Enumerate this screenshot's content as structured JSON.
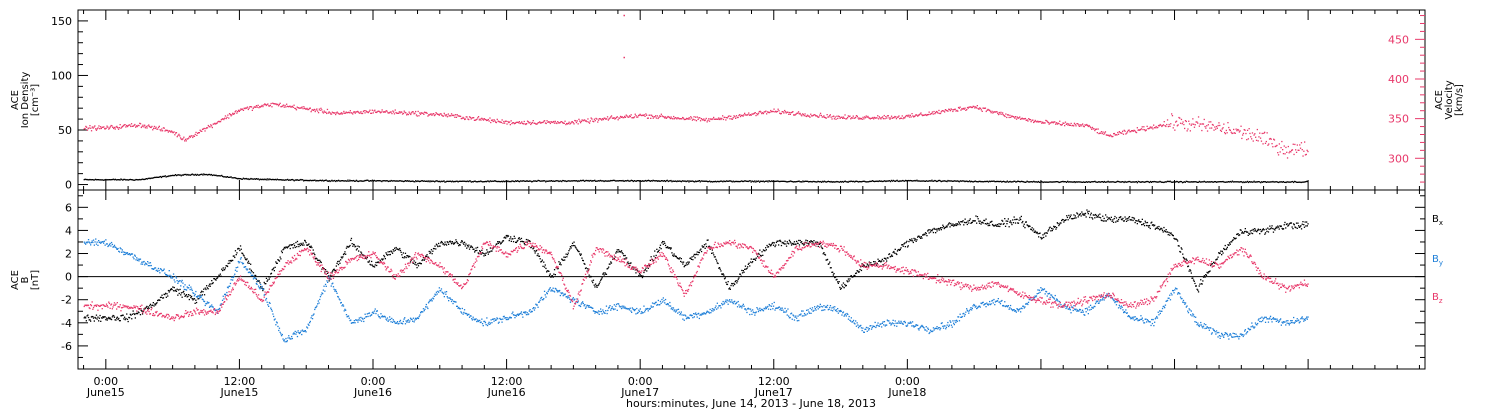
{
  "chart_data": [
    {
      "type": "scatter",
      "panel": "plasma",
      "ylabel_left": [
        "ACE",
        "Ion Density",
        "[cm⁻³]"
      ],
      "ylabel_right": [
        "ACE",
        "Velocity",
        "[km/s]"
      ],
      "ylim_left": [
        -5,
        160
      ],
      "yticks_left": [
        0,
        50,
        100,
        150
      ],
      "ylim_right": [
        260,
        487
      ],
      "yticks_right": [
        300,
        350,
        400,
        450
      ],
      "series": [
        {
          "axis": "left",
          "color": "#000000",
          "x_hours": [
            0,
            3,
            6,
            9,
            12,
            15,
            18,
            21,
            24,
            30,
            36,
            42,
            48,
            54,
            60,
            66,
            72,
            78,
            84,
            90,
            96,
            102,
            108
          ],
          "values": [
            5,
            5,
            9,
            10,
            6,
            5,
            4.5,
            4,
            4,
            3.5,
            3.5,
            4,
            4,
            3.5,
            3.5,
            3,
            4,
            3.5,
            3,
            3,
            3,
            3,
            3
          ]
        },
        {
          "axis": "right",
          "color": "#e8386a",
          "x_hours": [
            0,
            3,
            6,
            7,
            9,
            12,
            15,
            18,
            21,
            24,
            30,
            36,
            42,
            48,
            54,
            60,
            66,
            72,
            78,
            81,
            84,
            88,
            90,
            96,
            100,
            103,
            106,
            108
          ],
          "values": [
            339,
            343,
            334,
            324,
            339,
            362,
            369,
            363,
            357,
            360,
            356,
            346,
            346,
            355,
            349,
            360,
            352,
            353,
            366,
            354,
            346,
            342,
            329,
            346,
            339,
            330,
            312,
            312
          ]
        }
      ],
      "outliers": [
        {
          "x_hours": 46.5,
          "value": 481
        },
        {
          "x_hours": 46.5,
          "value": 428
        }
      ]
    },
    {
      "type": "scatter",
      "panel": "field",
      "ylabel": [
        "ACE",
        "B",
        "[nT]"
      ],
      "ylim": [
        -8,
        7.5
      ],
      "yticks": [
        -6,
        -4,
        -2,
        0,
        2,
        4,
        6
      ],
      "legend": [
        "Bx",
        "By",
        "Bz"
      ],
      "series": [
        {
          "name": "Bx",
          "color": "#000000",
          "x_hours": [
            0,
            2,
            4,
            6,
            8,
            10,
            12,
            14,
            16,
            18,
            20,
            22,
            24,
            26,
            28,
            30,
            32,
            34,
            36,
            38,
            40,
            42,
            44,
            46,
            48,
            50,
            52,
            54,
            56,
            58,
            60,
            62,
            64,
            66,
            68,
            70,
            72,
            74,
            76,
            78,
            80,
            82,
            84,
            86,
            88,
            90,
            92,
            94,
            96,
            98,
            100,
            102,
            104,
            106,
            108
          ],
          "values": [
            -3.5,
            -3.5,
            -2.5,
            -1,
            -2,
            0,
            2.5,
            -1,
            2.5,
            3,
            0,
            3,
            1,
            2.5,
            1,
            3,
            3,
            2,
            3.5,
            3,
            0,
            3,
            -1,
            2.5,
            0,
            3,
            1,
            3,
            -1,
            1.5,
            3,
            3,
            3,
            -1,
            1,
            1.5,
            3,
            4,
            4.5,
            5,
            4.5,
            5,
            3.5,
            5,
            5.5,
            5,
            5,
            4.5,
            3.5,
            -1,
            2,
            4,
            4,
            4.5,
            4.5
          ]
        },
        {
          "name": "By",
          "color": "#1e7fd8",
          "x_hours": [
            0,
            2,
            4,
            6,
            8,
            10,
            12,
            14,
            16,
            18,
            20,
            22,
            24,
            26,
            28,
            30,
            32,
            34,
            36,
            38,
            40,
            42,
            44,
            46,
            48,
            50,
            52,
            54,
            56,
            58,
            60,
            62,
            64,
            66,
            68,
            70,
            72,
            74,
            76,
            78,
            80,
            82,
            84,
            86,
            88,
            90,
            92,
            94,
            96,
            98,
            100,
            102,
            104,
            106,
            108
          ],
          "values": [
            3,
            2,
            1,
            0,
            -1.5,
            -3,
            1.5,
            -1,
            -5.5,
            -4.5,
            0,
            -4,
            -3,
            -4,
            -3.5,
            -1,
            -3,
            -4,
            -3.5,
            -3,
            -1,
            -2,
            -3,
            -2.5,
            -3,
            -2,
            -3.5,
            -3,
            -2,
            -3,
            -2.5,
            -3.5,
            -2.5,
            -3,
            -4.5,
            -4,
            -4,
            -4.5,
            -4,
            -2.5,
            -2,
            -3,
            -1,
            -2.5,
            -3,
            -1.5,
            -3.5,
            -4,
            -1,
            -4,
            -5,
            -5,
            -3.5,
            -4,
            -3.5
          ]
        },
        {
          "name": "Bz",
          "color": "#e8386a",
          "x_hours": [
            0,
            2,
            4,
            6,
            8,
            10,
            12,
            14,
            16,
            18,
            20,
            22,
            24,
            26,
            28,
            30,
            32,
            34,
            36,
            38,
            40,
            42,
            44,
            46,
            48,
            50,
            52,
            54,
            56,
            58,
            60,
            62,
            64,
            66,
            68,
            70,
            72,
            74,
            76,
            78,
            80,
            82,
            84,
            86,
            88,
            90,
            92,
            94,
            96,
            98,
            100,
            102,
            104,
            106,
            108
          ],
          "values": [
            -2.5,
            -2.5,
            -3,
            -3.5,
            -3,
            -3,
            0,
            -2,
            1,
            2.5,
            0,
            1.5,
            2,
            0,
            2,
            1,
            -1,
            3,
            2,
            3,
            2,
            -2.5,
            2.5,
            1.5,
            0.5,
            2,
            -1.5,
            2.5,
            3,
            2.5,
            0,
            2.5,
            3,
            2.5,
            1,
            1,
            0.5,
            0,
            -0.5,
            -1,
            -0.5,
            -1.5,
            -2,
            -2.5,
            -2,
            -1.5,
            -2.5,
            -2,
            1,
            1.5,
            1,
            2.5,
            0,
            -1,
            -0.5
          ]
        }
      ]
    }
  ],
  "xaxis": {
    "xlim_hours": [
      -2.5,
      118.5
    ],
    "ticks": [
      {
        "hour": 0,
        "time": "0:00",
        "date": "June15"
      },
      {
        "hour": 12,
        "time": "12:00",
        "date": "June15"
      },
      {
        "hour": 24,
        "time": "0:00",
        "date": "June16"
      },
      {
        "hour": 36,
        "time": "12:00",
        "date": "June16"
      },
      {
        "hour": 48,
        "time": "0:00",
        "date": "June17"
      },
      {
        "hour": 60,
        "time": "12:00",
        "date": "June17"
      },
      {
        "hour": 72,
        "time": "0:00",
        "date": "June18"
      }
    ],
    "title": "hours:minutes, June 14, 2013 - June 18, 2013"
  }
}
